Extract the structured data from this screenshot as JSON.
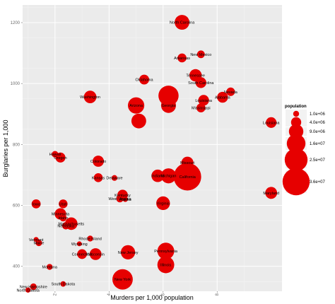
{
  "chart_data": {
    "type": "scatter",
    "title": "",
    "xlabel": "Murders per 1,000 population",
    "ylabel": "Burglaries per 1,000",
    "xlim": [
      0.8,
      10.4
    ],
    "ylim": [
      318,
      1258
    ],
    "x_ticks": [
      2,
      4,
      6,
      8
    ],
    "y_ticks": [
      400,
      600,
      800,
      1000,
      1200
    ],
    "grid": true,
    "legend": {
      "title": "population",
      "placement": "right",
      "labels": [
        "1.0e+06",
        "4.0e+06",
        "9.0e+06",
        "1.6e+07",
        "2.5e+07",
        "3.6e+07"
      ],
      "values": [
        1000000,
        4000000,
        9000000,
        16000000,
        25000000,
        36000000
      ]
    },
    "point_color": "#e60000",
    "points": [
      {
        "name": "North Carolina",
        "x": 6.7,
        "y": 1201,
        "population": 9500000
      },
      {
        "name": "New Mexico",
        "x": 7.4,
        "y": 1096,
        "population": 2000000
      },
      {
        "name": "Arkansas",
        "x": 6.7,
        "y": 1084,
        "population": 2900000
      },
      {
        "name": "Tennessee",
        "x": 7.2,
        "y": 1027,
        "population": 6300000
      },
      {
        "name": "South Carolina",
        "x": 7.4,
        "y": 1003,
        "population": 4600000
      },
      {
        "name": "Oklahoma",
        "x": 5.3,
        "y": 1013,
        "population": 3700000
      },
      {
        "name": "Nevada",
        "x": 8.5,
        "y": 973,
        "population": 2600000
      },
      {
        "name": "Washington",
        "x": 3.3,
        "y": 956,
        "population": 6600000
      },
      {
        "name": "Alabama",
        "x": 8.2,
        "y": 955,
        "population": 4700000
      },
      {
        "name": "",
        "x": 6.2,
        "y": 960,
        "population": 19000000
      },
      {
        "name": "Louisiana",
        "x": 7.5,
        "y": 945,
        "population": 4500000
      },
      {
        "name": "Arizona",
        "x": 5.0,
        "y": 928,
        "population": 12000000
      },
      {
        "name": "Georgia",
        "x": 6.2,
        "y": 928,
        "population": 9700000
      },
      {
        "name": "Mississippi",
        "x": 7.4,
        "y": 920,
        "population": 2900000
      },
      {
        "name": "Louisiana",
        "x": 10.0,
        "y": 872,
        "population": 4500000
      },
      {
        "name": "",
        "x": 5.1,
        "y": 877,
        "population": 9500000
      },
      {
        "name": "Hawaii",
        "x": 2.0,
        "y": 768,
        "population": 1300000
      },
      {
        "name": "Oregon",
        "x": 2.2,
        "y": 757,
        "population": 3800000
      },
      {
        "name": "Colorado",
        "x": 3.6,
        "y": 745,
        "population": 5000000
      },
      {
        "name": "Missouri",
        "x": 6.9,
        "y": 740,
        "population": 6000000
      },
      {
        "name": "Indiana",
        "x": 5.8,
        "y": 697,
        "population": 6500000
      },
      {
        "name": "Michigan",
        "x": 6.2,
        "y": 697,
        "population": 9900000
      },
      {
        "name": "California",
        "x": 6.9,
        "y": 694,
        "population": 37000000
      },
      {
        "name": "Kansas",
        "x": 3.6,
        "y": 691,
        "population": 2900000
      },
      {
        "name": "Delaware",
        "x": 4.2,
        "y": 690,
        "population": 900000
      },
      {
        "name": "Maryland",
        "x": 10.0,
        "y": 641,
        "population": 5800000
      },
      {
        "name": "Kentucky",
        "x": 4.5,
        "y": 634,
        "population": 4300000
      },
      {
        "name": "West Virginia",
        "x": 4.4,
        "y": 622,
        "population": 1800000
      },
      {
        "name": "Alaska",
        "x": 4.6,
        "y": 620,
        "population": 700000
      },
      {
        "name": "Virginia",
        "x": 6.0,
        "y": 607,
        "population": 8000000
      },
      {
        "name": "Iowa",
        "x": 1.3,
        "y": 605,
        "population": 3000000
      },
      {
        "name": "Utah",
        "x": 2.3,
        "y": 605,
        "population": 2800000
      },
      {
        "name": "Minnesota",
        "x": 2.2,
        "y": 572,
        "population": 5300000
      },
      {
        "name": "Idaho",
        "x": 2.3,
        "y": 559,
        "population": 1600000
      },
      {
        "name": "Massachusetts",
        "x": 2.6,
        "y": 540,
        "population": 6500000
      },
      {
        "name": "Nebraska",
        "x": 2.4,
        "y": 533,
        "population": 1800000
      },
      {
        "name": "Rhode Island",
        "x": 3.3,
        "y": 491,
        "population": 1000000
      },
      {
        "name": "Vermont",
        "x": 1.3,
        "y": 488,
        "population": 600000
      },
      {
        "name": "Maine",
        "x": 1.4,
        "y": 477,
        "population": 1300000
      },
      {
        "name": "Wyoming",
        "x": 2.9,
        "y": 474,
        "population": 560000
      },
      {
        "name": "Pennsylvania",
        "x": 6.1,
        "y": 450,
        "population": 12700000
      },
      {
        "name": "New Jersey",
        "x": 4.7,
        "y": 446,
        "population": 8800000
      },
      {
        "name": "Connecticut",
        "x": 3.0,
        "y": 440,
        "population": 3600000
      },
      {
        "name": "Wisconsin",
        "x": 3.5,
        "y": 440,
        "population": 5700000
      },
      {
        "name": "Illinois",
        "x": 6.1,
        "y": 405,
        "population": 12800000
      },
      {
        "name": "Montana",
        "x": 1.8,
        "y": 398,
        "population": 1000000
      },
      {
        "name": "New York",
        "x": 4.5,
        "y": 357,
        "population": 19400000
      },
      {
        "name": "South Dakota",
        "x": 2.3,
        "y": 342,
        "population": 820000
      },
      {
        "name": "New Hampshire",
        "x": 1.2,
        "y": 333,
        "population": 1300000
      },
      {
        "name": "North Dakota",
        "x": 1.0,
        "y": 322,
        "population": 680000
      }
    ]
  }
}
